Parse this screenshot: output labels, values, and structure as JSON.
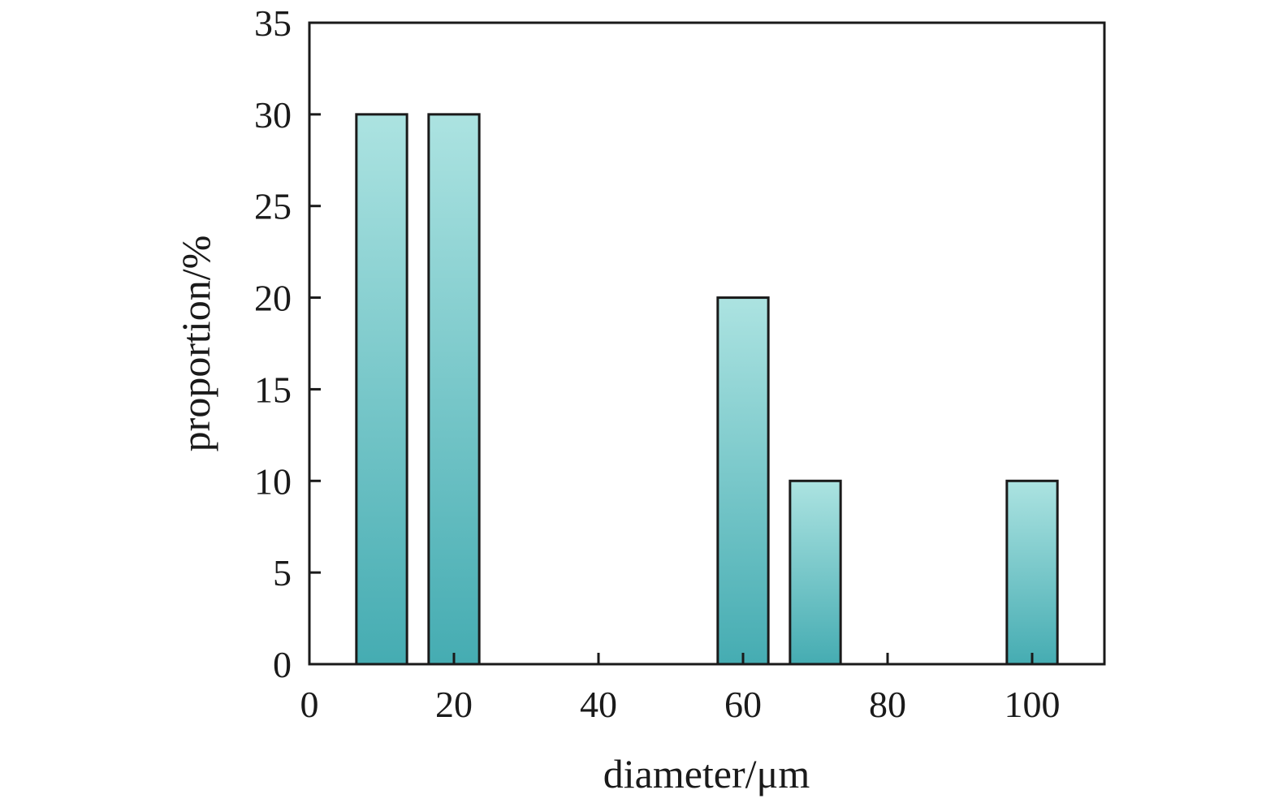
{
  "chart_data": {
    "type": "bar",
    "title": "",
    "xlabel": "diameter/μm",
    "ylabel": "proportion/%",
    "x": [
      10,
      20,
      60,
      70,
      100
    ],
    "values": [
      30,
      30,
      20,
      10,
      10
    ],
    "bar_width": 7,
    "xlim": [
      0,
      110
    ],
    "ylim": [
      0,
      35
    ],
    "xticks": [
      0,
      20,
      40,
      60,
      80,
      100
    ],
    "yticks": [
      0,
      5,
      10,
      15,
      20,
      25,
      30,
      35
    ],
    "grid": false,
    "legend": "none",
    "colors": {
      "bar_top": "#ACE3E1",
      "bar_bottom": "#45ACB2",
      "outline": "#1a1a1a"
    }
  }
}
